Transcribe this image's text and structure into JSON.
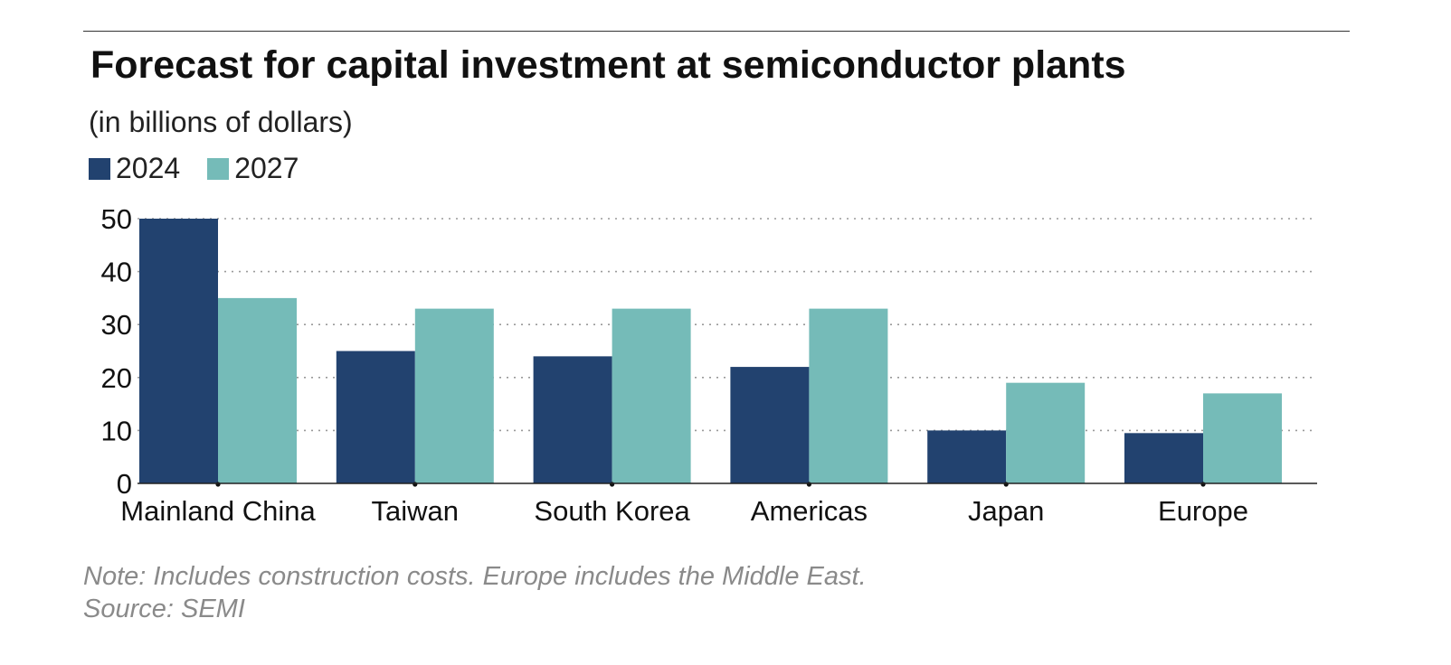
{
  "chart_data": {
    "type": "bar",
    "title": "Forecast for capital investment at semiconductor plants",
    "subtitle": "(in billions of dollars)",
    "categories": [
      "Mainland China",
      "Taiwan",
      "South Korea",
      "Americas",
      "Japan",
      "Europe"
    ],
    "series": [
      {
        "name": "2024",
        "color": "#22426f",
        "values": [
          50,
          25,
          24,
          22,
          10,
          9.5
        ]
      },
      {
        "name": "2027",
        "color": "#75bbb8",
        "values": [
          35,
          33,
          33,
          33,
          19,
          17
        ]
      }
    ],
    "ylim": [
      0,
      50
    ],
    "yticks": [
      "0",
      "10",
      "20",
      "30",
      "40",
      "50"
    ],
    "grid": true,
    "legend": "top-left"
  },
  "footer": {
    "note": "Note: Includes construction costs. Europe includes the Middle East.",
    "source": "Source: SEMI"
  }
}
